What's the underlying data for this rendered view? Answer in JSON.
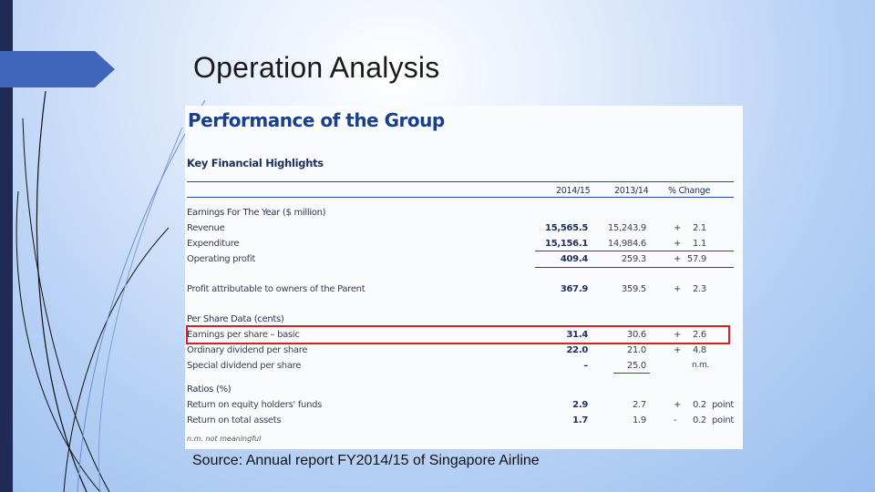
{
  "slide": {
    "title": "Operation Analysis",
    "source": "Source: Annual report FY2014/15 of Singapore Airline"
  },
  "report": {
    "heading": "Performance of the Group",
    "subheading": "Key Financial Highlights",
    "columns": [
      "2014/15",
      "2013/14",
      "% Change"
    ],
    "sections": {
      "earnings": "Earnings For The Year ($ million)",
      "per_share": "Per Share Data (cents)",
      "ratios": "Ratios (%)"
    },
    "rows": {
      "revenue": {
        "label": "Revenue",
        "v1": "15,565.5",
        "v2": "15,243.9",
        "sign": "+",
        "pct": "2.1"
      },
      "expenditure": {
        "label": "Expenditure",
        "v1": "15,156.1",
        "v2": "14,984.6",
        "sign": "+",
        "pct": "1.1"
      },
      "operating": {
        "label": "Operating profit",
        "v1": "409.4",
        "v2": "259.3",
        "sign": "+",
        "pct": "57.9"
      },
      "profit_owners": {
        "label": "Profit attributable to owners of the Parent",
        "v1": "367.9",
        "v2": "359.5",
        "sign": "+",
        "pct": "2.3"
      },
      "eps_basic": {
        "label": "Earnings per share – basic",
        "v1": "31.4",
        "v2": "30.6",
        "sign": "+",
        "pct": "2.6"
      },
      "ordinary_div": {
        "label": "Ordinary dividend per share",
        "v1": "22.0",
        "v2": "21.0",
        "sign": "+",
        "pct": "4.8"
      },
      "special_div": {
        "label": "Special dividend per share",
        "v1": "–",
        "v2": "25.0",
        "na": "n.m."
      },
      "roe": {
        "label": "Return on equity holders' funds",
        "v1": "2.9",
        "v2": "2.7",
        "sign": "+",
        "pct": "0.2",
        "unit": "point"
      },
      "roa": {
        "label": "Return on total assets",
        "v1": "1.7",
        "v2": "1.9",
        "sign": "-",
        "pct": "0.2",
        "unit": "point"
      }
    },
    "note": "n.m. not meaningful"
  },
  "colors": {
    "left_bar": "#1f2a55",
    "tab": "#3f66b8",
    "heading": "#1c3f8a",
    "rule": "#1f4aa0",
    "highlight": "#d0202a"
  }
}
